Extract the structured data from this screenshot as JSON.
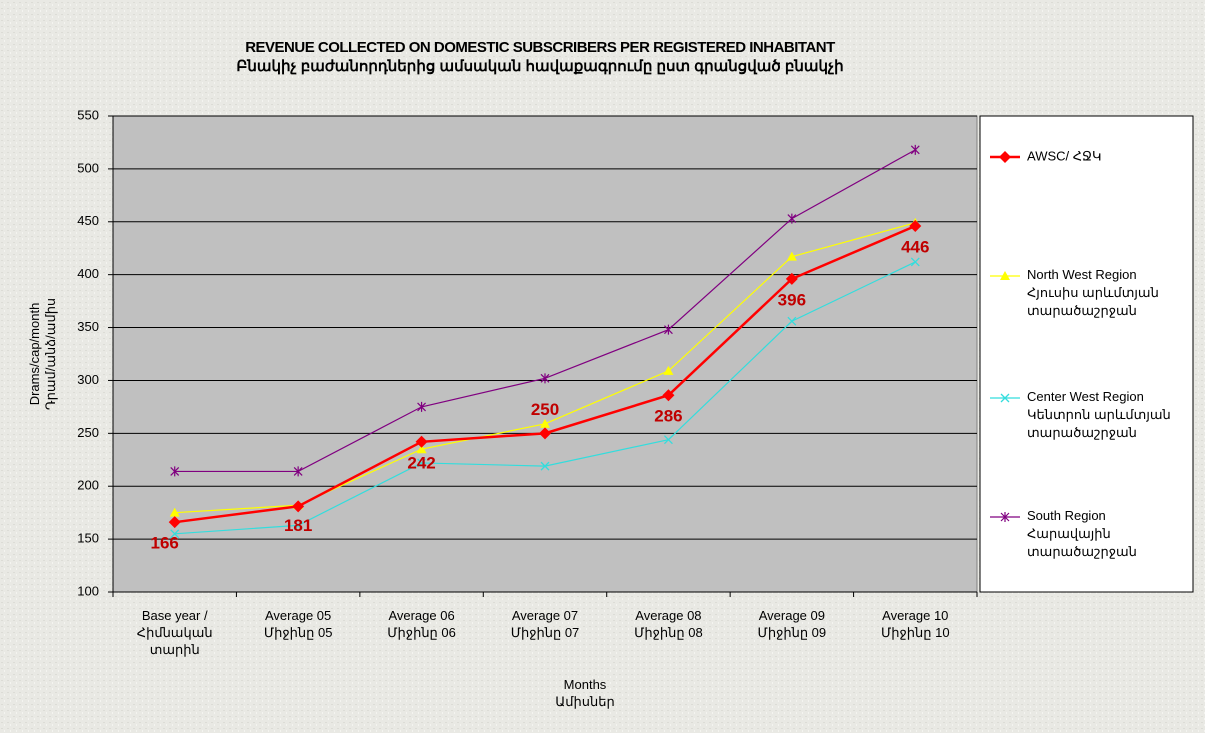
{
  "chart_data": {
    "type": "line",
    "title": "REVENUE COLLECTED ON DOMESTIC SUBSCRIBERS PER REGISTERED INHABITANT",
    "subtitle": "Բնակիչ բաժանորդներից ամսական հավաքագրումը ըստ գրանցված բնակչի",
    "x_label": "Months\nԱմիսներ",
    "y_label": "Drams/cap/month\nԴրամ/անձ/ամիս",
    "categories": [
      "Base year /\nՀիմնական\nտարին",
      "Average 05\nՄիջինը 05",
      "Average 06\nՄիջինը 06",
      "Average 07\nՄիջինը 07",
      "Average 08\nՄիջինը 08",
      "Average 09\nՄիջինը 09",
      "Average 10\nՄիջինը 10"
    ],
    "series": [
      {
        "name": "AWSC/ ՀՋԿ",
        "color": "#ff0000",
        "marker": "diamond",
        "values": [
          166,
          181,
          242,
          250,
          286,
          396,
          446
        ]
      },
      {
        "name": "North West Region\nՀյուսիս արևմտյան\nտարածաշրջան",
        "color": "#ffff00",
        "marker": "triangle",
        "values": [
          175,
          182,
          235,
          259,
          309,
          417,
          449
        ]
      },
      {
        "name": "Center West Region\nԿենտրոն արևմտյան\nտարածաշրջան",
        "color": "#33dddd",
        "marker": "x",
        "values": [
          155,
          163,
          222,
          219,
          244,
          356,
          412
        ]
      },
      {
        "name": "South Region\nՀարավային\nտարածաշրջան",
        "color": "#800080",
        "marker": "star",
        "values": [
          214,
          214,
          275,
          302,
          348,
          453,
          518
        ]
      }
    ],
    "ylim": [
      100,
      550
    ],
    "yticks": [
      100,
      150,
      200,
      250,
      300,
      350,
      400,
      450,
      500,
      550
    ],
    "grid": true
  }
}
